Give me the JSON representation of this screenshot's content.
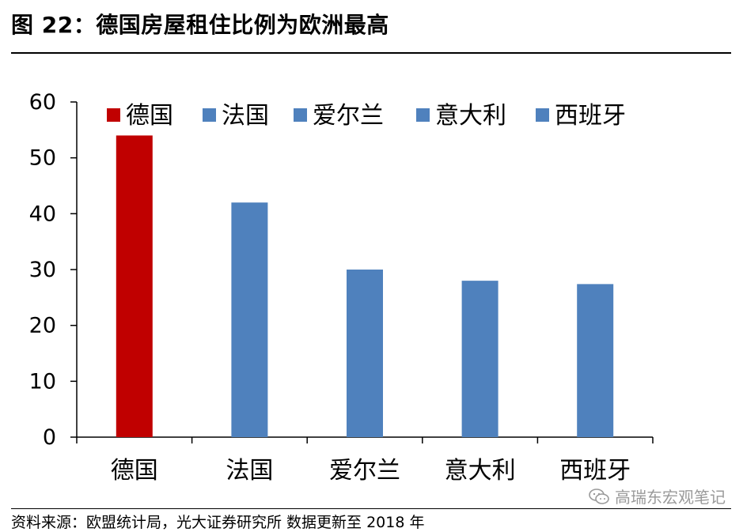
{
  "title": "图 22：德国房屋租住比例为欧洲最高",
  "source": "资料来源：欧盟统计局，光大证券研究所   数据更新至 2018 年",
  "watermark": "高瑞东宏观笔记",
  "chart_data": {
    "type": "bar",
    "categories": [
      "德国",
      "法国",
      "爱尔兰",
      "意大利",
      "西班牙"
    ],
    "values": [
      54,
      42,
      30,
      28,
      27.4
    ],
    "colors": [
      "#c00000",
      "#4f81bd",
      "#4f81bd",
      "#4f81bd",
      "#4f81bd"
    ],
    "legend": [
      "德国",
      "法国",
      "爱尔兰",
      "意大利",
      "西班牙"
    ],
    "legend_position": "top",
    "ylim": [
      0,
      60
    ],
    "yticks": [
      0,
      10,
      20,
      30,
      40,
      50,
      60
    ],
    "grid": false,
    "title": "",
    "xlabel": "",
    "ylabel": ""
  }
}
